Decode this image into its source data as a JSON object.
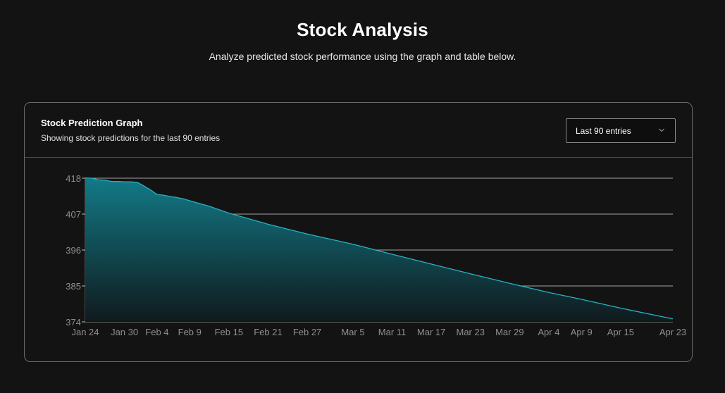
{
  "header": {
    "title": "Stock Analysis",
    "subtitle": "Analyze predicted stock performance using the graph and table below."
  },
  "card": {
    "title": "Stock Prediction Graph",
    "description": "Showing stock predictions for the last 90 entries",
    "range_select": {
      "selected": "Last 90 entries",
      "icon": "chevron-down-icon"
    }
  },
  "colors": {
    "background": "#131313",
    "area_top": "#127a87",
    "area_bottom": "#101a1d",
    "line": "#24b2c2",
    "grid": "#bdbdbd",
    "tick_text": "#8f8f8f"
  },
  "chart_data": {
    "type": "area",
    "title": "",
    "xlabel": "",
    "ylabel": "",
    "ylim": [
      374,
      418
    ],
    "yticks": [
      374,
      385,
      396,
      407,
      418
    ],
    "x_tick_labels": [
      "Jan 24",
      "Jan 30",
      "Feb 4",
      "Feb 9",
      "Feb 15",
      "Feb 21",
      "Feb 27",
      "Mar 5",
      "Mar 11",
      "Mar 17",
      "Mar 23",
      "Mar 29",
      "Apr 4",
      "Apr 9",
      "Apr 15",
      "Apr 23"
    ],
    "grid": true,
    "series": [
      {
        "x": [
          "Jan 24",
          "Jan 25",
          "Jan 26",
          "Jan 27",
          "Jan 28",
          "Jan 29",
          "Jan 30",
          "Jan 31",
          "Feb 1",
          "Feb 2",
          "Feb 3",
          "Feb 4",
          "Feb 5",
          "Feb 6",
          "Feb 7",
          "Feb 8",
          "Feb 9",
          "Feb 12",
          "Feb 15",
          "Feb 21",
          "Feb 27",
          "Mar 5",
          "Mar 11",
          "Mar 17",
          "Mar 23",
          "Mar 29",
          "Apr 4",
          "Apr 9",
          "Apr 15",
          "Apr 23"
        ],
        "values": [
          418.1,
          418.0,
          417.5,
          417.4,
          417.0,
          417.0,
          416.9,
          416.9,
          416.7,
          415.6,
          414.4,
          413.0,
          412.8,
          412.4,
          412.1,
          411.7,
          411.1,
          409.4,
          407.3,
          403.9,
          400.9,
          397.8,
          394.7,
          391.7,
          388.7,
          385.8,
          383.0,
          380.9,
          378.2,
          374.9
        ]
      }
    ]
  }
}
